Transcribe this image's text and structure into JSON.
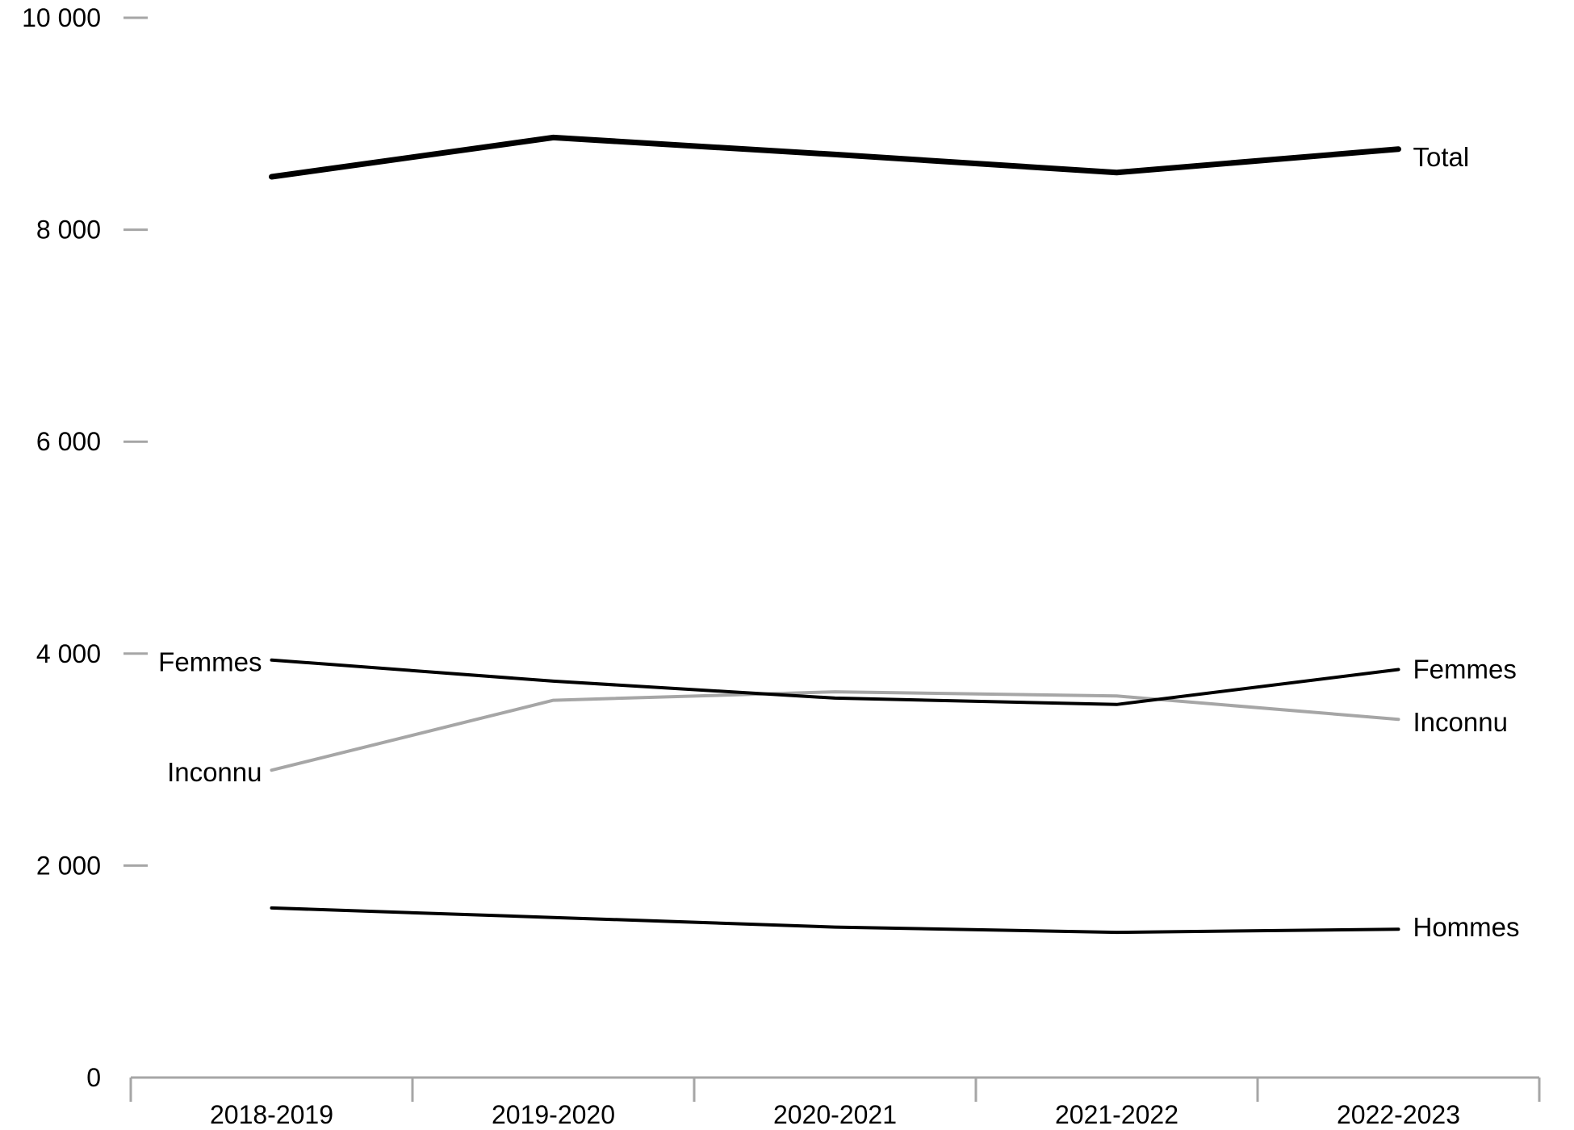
{
  "chart_data": {
    "type": "line",
    "categories": [
      "2018-2019",
      "2019-2020",
      "2020-2021",
      "2021-2022",
      "2022-2023"
    ],
    "ylim": [
      0,
      10000
    ],
    "yticks": [
      0,
      2000,
      4000,
      6000,
      8000,
      10000
    ],
    "ytick_labels": [
      "0",
      "2 000",
      "4 000",
      "6 000",
      "8 000",
      "10 000"
    ],
    "grid": false,
    "legend": "none",
    "series": [
      {
        "name": "Total",
        "values": [
          8500,
          8870,
          8710,
          8540,
          8760
        ],
        "color": "#000000",
        "label_left": "",
        "label_right": "Total"
      },
      {
        "name": "Femmes",
        "values": [
          3940,
          3740,
          3580,
          3520,
          3850
        ],
        "color": "#000000",
        "label_left": "Femmes",
        "label_right": "Femmes"
      },
      {
        "name": "Inconnu",
        "values": [
          2900,
          3560,
          3640,
          3600,
          3380
        ],
        "color": "#a6a6a6",
        "label_left": "Inconnu",
        "label_right": "Inconnu"
      },
      {
        "name": "Hommes",
        "values": [
          1600,
          1510,
          1420,
          1370,
          1400
        ],
        "color": "#000000",
        "label_left": "",
        "label_right": "Hommes"
      }
    ]
  }
}
